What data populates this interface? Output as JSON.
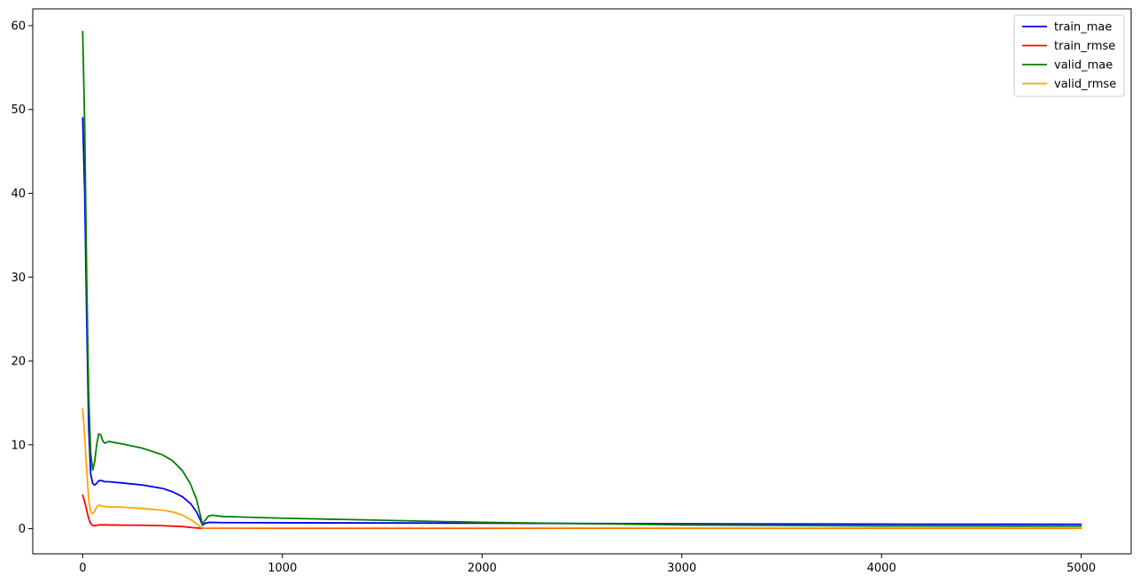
{
  "chart_data": {
    "type": "line",
    "title": "",
    "xlabel": "",
    "ylabel": "",
    "xlim": [
      -250,
      5250
    ],
    "ylim": [
      -3,
      62
    ],
    "xticks": [
      0,
      1000,
      2000,
      3000,
      4000,
      5000
    ],
    "yticks": [
      0,
      10,
      20,
      30,
      40,
      50,
      60
    ],
    "grid": false,
    "legend_position": "top-right",
    "series": [
      {
        "name": "train_mae",
        "color": "#0000ff",
        "points": [
          [
            0,
            49
          ],
          [
            10,
            40
          ],
          [
            20,
            25
          ],
          [
            30,
            12
          ],
          [
            40,
            6.5
          ],
          [
            50,
            5.4
          ],
          [
            60,
            5.2
          ],
          [
            70,
            5.4
          ],
          [
            80,
            5.7
          ],
          [
            90,
            5.75
          ],
          [
            100,
            5.7
          ],
          [
            110,
            5.6
          ],
          [
            130,
            5.6
          ],
          [
            200,
            5.45
          ],
          [
            300,
            5.2
          ],
          [
            400,
            4.8
          ],
          [
            450,
            4.4
          ],
          [
            500,
            3.8
          ],
          [
            540,
            3.0
          ],
          [
            570,
            2.0
          ],
          [
            590,
            1.0
          ],
          [
            600,
            0.4
          ],
          [
            610,
            0.6
          ],
          [
            630,
            0.75
          ],
          [
            700,
            0.72
          ],
          [
            1000,
            0.7
          ],
          [
            2000,
            0.65
          ],
          [
            3000,
            0.58
          ],
          [
            4000,
            0.54
          ],
          [
            5000,
            0.52
          ]
        ]
      },
      {
        "name": "train_rmse",
        "color": "#ff0000",
        "points": [
          [
            0,
            4
          ],
          [
            10,
            3.2
          ],
          [
            20,
            2.2
          ],
          [
            30,
            1.2
          ],
          [
            40,
            0.6
          ],
          [
            50,
            0.38
          ],
          [
            60,
            0.35
          ],
          [
            70,
            0.4
          ],
          [
            80,
            0.45
          ],
          [
            100,
            0.45
          ],
          [
            200,
            0.42
          ],
          [
            300,
            0.4
          ],
          [
            400,
            0.35
          ],
          [
            500,
            0.25
          ],
          [
            560,
            0.1
          ],
          [
            600,
            0.04
          ],
          [
            650,
            0.06
          ],
          [
            1000,
            0.05
          ],
          [
            2000,
            0.05
          ],
          [
            3000,
            0.05
          ],
          [
            4000,
            0.05
          ],
          [
            5000,
            0.05
          ]
        ]
      },
      {
        "name": "valid_mae",
        "color": "#008000",
        "points": [
          [
            0,
            59.3
          ],
          [
            10,
            48
          ],
          [
            20,
            30
          ],
          [
            30,
            16
          ],
          [
            40,
            9
          ],
          [
            50,
            7
          ],
          [
            60,
            8
          ],
          [
            70,
            10
          ],
          [
            80,
            11.3
          ],
          [
            90,
            11.2
          ],
          [
            100,
            10.5
          ],
          [
            110,
            10.2
          ],
          [
            120,
            10.3
          ],
          [
            130,
            10.4
          ],
          [
            200,
            10.1
          ],
          [
            300,
            9.6
          ],
          [
            400,
            8.8
          ],
          [
            450,
            8.1
          ],
          [
            500,
            6.9
          ],
          [
            540,
            5.3
          ],
          [
            570,
            3.5
          ],
          [
            590,
            1.5
          ],
          [
            600,
            0.5
          ],
          [
            610,
            0.9
          ],
          [
            630,
            1.5
          ],
          [
            650,
            1.6
          ],
          [
            700,
            1.45
          ],
          [
            1000,
            1.25
          ],
          [
            2000,
            0.75
          ],
          [
            3000,
            0.45
          ],
          [
            4000,
            0.32
          ],
          [
            5000,
            0.3
          ]
        ]
      },
      {
        "name": "valid_rmse",
        "color": "#ffa500",
        "points": [
          [
            0,
            14.3
          ],
          [
            10,
            11
          ],
          [
            20,
            7
          ],
          [
            30,
            3.5
          ],
          [
            40,
            2.0
          ],
          [
            50,
            1.8
          ],
          [
            60,
            2.1
          ],
          [
            70,
            2.6
          ],
          [
            80,
            2.8
          ],
          [
            90,
            2.75
          ],
          [
            100,
            2.65
          ],
          [
            130,
            2.6
          ],
          [
            200,
            2.55
          ],
          [
            300,
            2.4
          ],
          [
            400,
            2.2
          ],
          [
            450,
            2.0
          ],
          [
            500,
            1.6
          ],
          [
            540,
            1.1
          ],
          [
            570,
            0.6
          ],
          [
            590,
            0.2
          ],
          [
            600,
            0.05
          ],
          [
            650,
            0.1
          ],
          [
            1000,
            0.1
          ],
          [
            2000,
            0.1
          ],
          [
            3000,
            0.08
          ],
          [
            4000,
            0.07
          ],
          [
            5000,
            0.07
          ]
        ]
      }
    ]
  }
}
